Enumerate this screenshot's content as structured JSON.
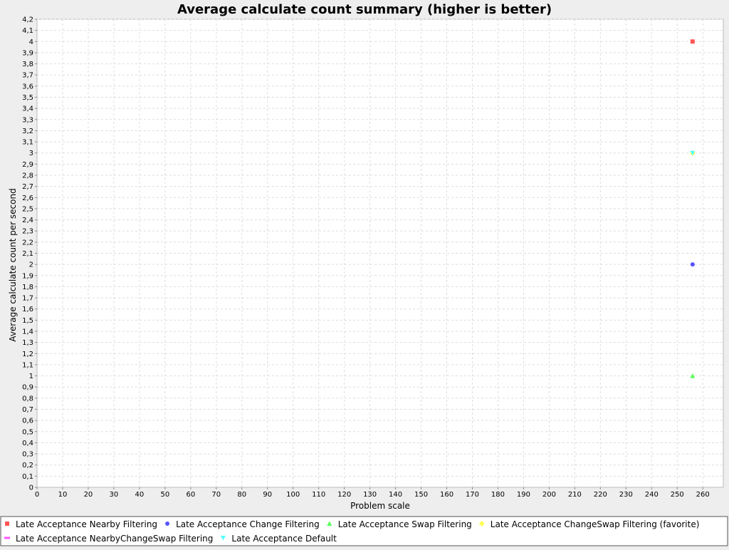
{
  "chart_data": {
    "type": "scatter",
    "title": "Average calculate count summary (higher is better)",
    "xlabel": "Problem scale",
    "ylabel": "Average calculate count per second",
    "xlim": [
      0,
      268
    ],
    "ylim": [
      0,
      4.2
    ],
    "x_ticks": [
      "0",
      "10",
      "20",
      "30",
      "40",
      "50",
      "60",
      "70",
      "80",
      "90",
      "100",
      "110",
      "120",
      "130",
      "140",
      "150",
      "160",
      "170",
      "180",
      "190",
      "200",
      "210",
      "220",
      "230",
      "240",
      "250",
      "260"
    ],
    "y_ticks": [
      "0",
      "0,1",
      "0,2",
      "0,3",
      "0,4",
      "0,5",
      "0,6",
      "0,7",
      "0,8",
      "0,9",
      "1",
      "1,1",
      "1,2",
      "1,3",
      "1,4",
      "1,5",
      "1,6",
      "1,7",
      "1,8",
      "1,9",
      "2",
      "2,1",
      "2,2",
      "2,3",
      "2,4",
      "2,5",
      "2,6",
      "2,7",
      "2,8",
      "2,9",
      "3",
      "3,1",
      "3,2",
      "3,3",
      "3,4",
      "3,5",
      "3,6",
      "3,7",
      "3,8",
      "3,9",
      "4",
      "4,1",
      "4,2"
    ],
    "grid": true,
    "legend_position": "bottom",
    "series": [
      {
        "name": "Late Acceptance Nearby Filtering",
        "color": "#ff5555",
        "marker": "square",
        "x": [
          256
        ],
        "y": [
          4
        ]
      },
      {
        "name": "Late Acceptance Change Filtering",
        "color": "#5555ff",
        "marker": "circle",
        "x": [
          256
        ],
        "y": [
          2
        ]
      },
      {
        "name": "Late Acceptance Swap Filtering",
        "color": "#55ff55",
        "marker": "triangle-up",
        "x": [
          256
        ],
        "y": [
          1
        ]
      },
      {
        "name": "Late Acceptance ChangeSwap Filtering (favorite)",
        "color": "#ffff55",
        "marker": "diamond",
        "x": [
          256
        ],
        "y": [
          3
        ]
      },
      {
        "name": "Late Acceptance NearbyChangeSwap Filtering",
        "color": "#ff55ff",
        "marker": "rect-h",
        "x": [],
        "y": []
      },
      {
        "name": "Late Acceptance Default",
        "color": "#55ffff",
        "marker": "triangle-down",
        "x": [
          256
        ],
        "y": [
          3
        ]
      }
    ]
  }
}
